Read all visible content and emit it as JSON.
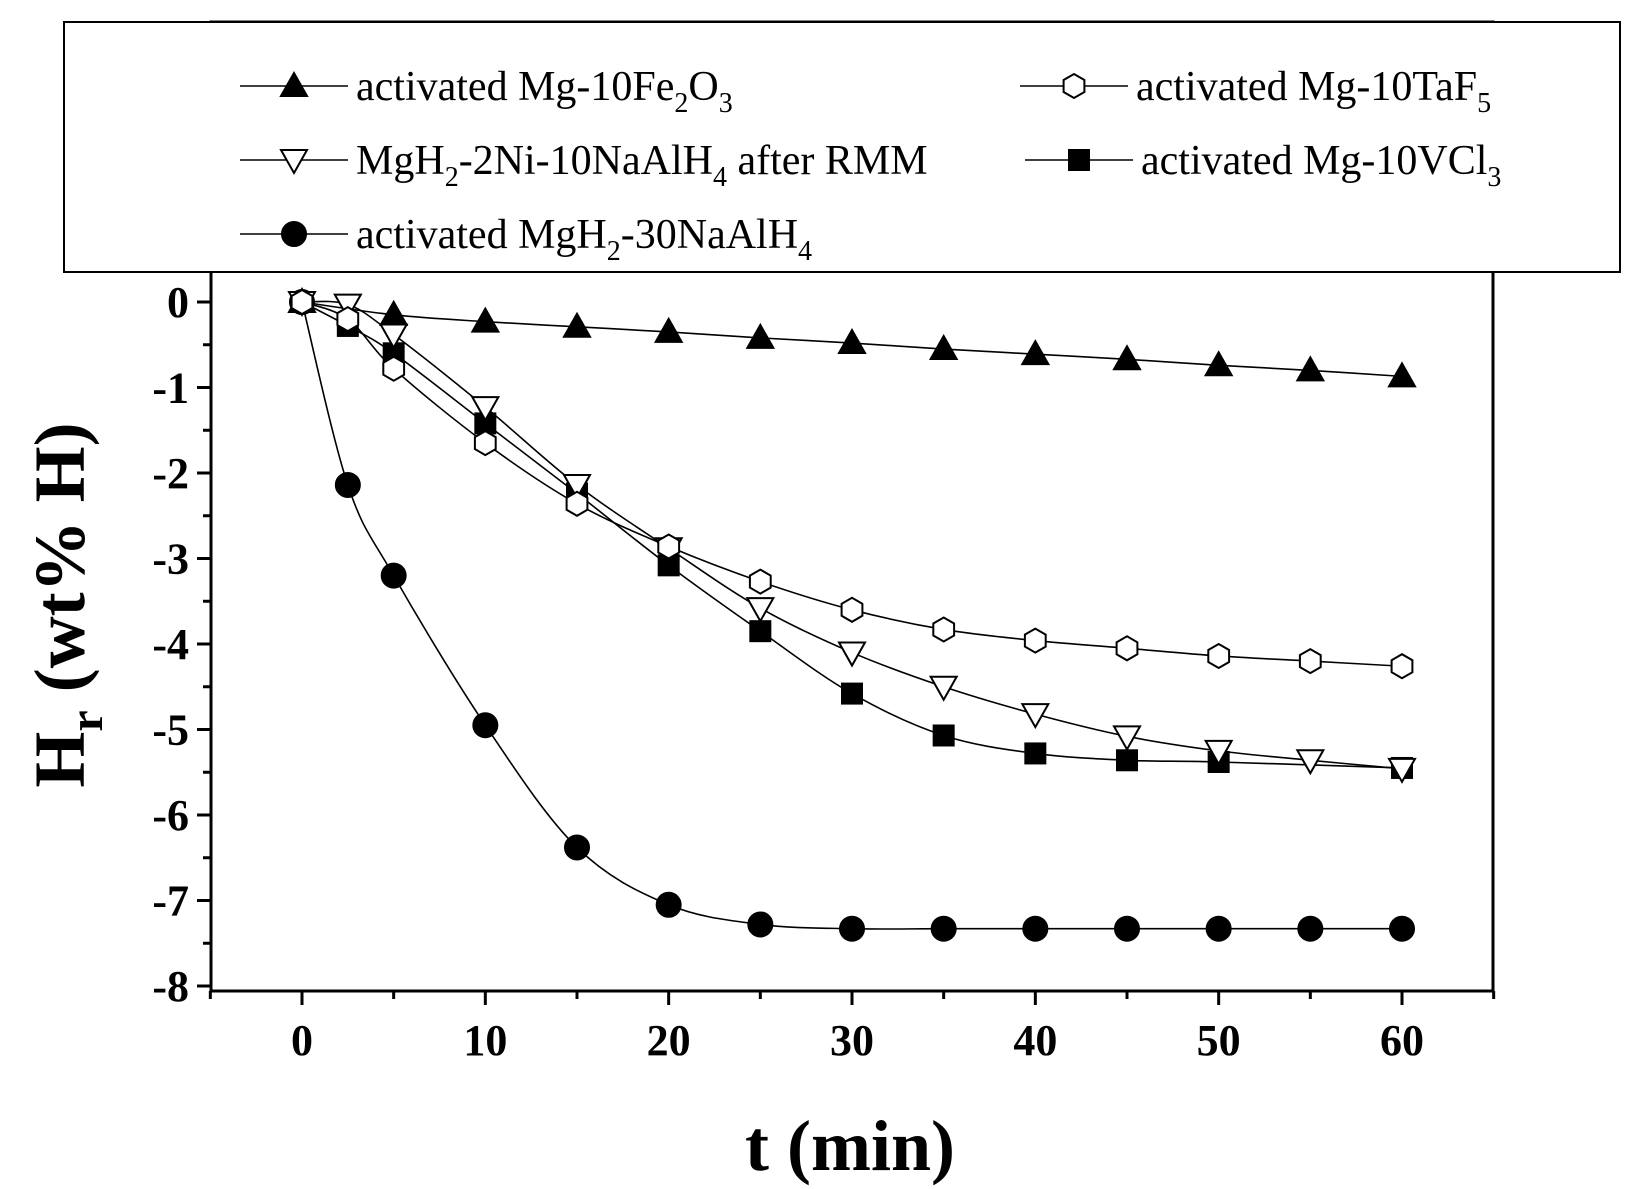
{
  "chart_data": {
    "type": "line",
    "title": "",
    "xlabel": "t (min)",
    "ylabel_main": "H",
    "ylabel_sub": "r",
    "ylabel_rest": " (wt% H)",
    "xlim": [
      -5,
      65
    ],
    "ylim": [
      -8,
      0
    ],
    "x_ticks": [
      0,
      10,
      20,
      30,
      40,
      50,
      60
    ],
    "x_tick_labels": [
      "0",
      "10",
      "20",
      "30",
      "40",
      "50",
      "60"
    ],
    "y_ticks": [
      0,
      -1,
      -2,
      -3,
      -4,
      -5,
      -6,
      -7,
      -8
    ],
    "y_tick_labels": [
      "0",
      "-1",
      "-2",
      "-3",
      "-4",
      "-5",
      "-6",
      "-7",
      "-8"
    ],
    "series": [
      {
        "name": "activated Mg-10Fe2O3",
        "legend_parts": [
          [
            "activated Mg-10Fe",
            ""
          ],
          [
            "2",
            "sub"
          ],
          [
            "O",
            ""
          ],
          [
            "3",
            "sub"
          ]
        ],
        "marker": "triangle-up-filled",
        "x": [
          0,
          5,
          10,
          15,
          20,
          25,
          30,
          35,
          40,
          45,
          50,
          55,
          60
        ],
        "values": [
          0,
          -0.15,
          -0.23,
          -0.29,
          -0.35,
          -0.42,
          -0.48,
          -0.55,
          -0.61,
          -0.67,
          -0.74,
          -0.8,
          -0.87
        ]
      },
      {
        "name": "activated Mg-10TaF5",
        "legend_parts": [
          [
            "activated Mg-10TaF",
            ""
          ],
          [
            "5",
            "sub"
          ]
        ],
        "marker": "hexagon-open",
        "x": [
          0,
          2.5,
          5,
          10,
          15,
          20,
          25,
          30,
          35,
          40,
          45,
          50,
          55,
          60
        ],
        "values": [
          0,
          -0.2,
          -0.78,
          -1.65,
          -2.36,
          -2.86,
          -3.27,
          -3.6,
          -3.83,
          -3.96,
          -4.05,
          -4.14,
          -4.2,
          -4.26
        ]
      },
      {
        "name": "MgH2-2Ni-10NaAlH4 after RMM",
        "legend_parts": [
          [
            "MgH",
            ""
          ],
          [
            "2",
            "sub"
          ],
          [
            "-2Ni-10NaAlH",
            ""
          ],
          [
            "4",
            "sub"
          ],
          [
            " after RMM",
            ""
          ]
        ],
        "marker": "triangle-down-open",
        "x": [
          0,
          2.5,
          5,
          10,
          15,
          20,
          25,
          30,
          35,
          40,
          45,
          50,
          55,
          60
        ],
        "values": [
          0,
          -0.03,
          -0.38,
          -1.23,
          -2.14,
          -2.88,
          -3.58,
          -4.1,
          -4.5,
          -4.82,
          -5.08,
          -5.25,
          -5.36,
          -5.46
        ]
      },
      {
        "name": "activated Mg-10VCl3",
        "legend_parts": [
          [
            "activated Mg-10VCl",
            ""
          ],
          [
            "3",
            "sub"
          ]
        ],
        "marker": "square-filled",
        "x": [
          0,
          2.5,
          5,
          10,
          15,
          20,
          25,
          30,
          35,
          40,
          45,
          50,
          60
        ],
        "values": [
          0,
          -0.28,
          -0.6,
          -1.42,
          -2.24,
          -3.08,
          -3.85,
          -4.58,
          -5.07,
          -5.28,
          -5.36,
          -5.38,
          -5.45
        ]
      },
      {
        "name": "activated MgH2-30NaAlH4",
        "legend_parts": [
          [
            "activated MgH",
            ""
          ],
          [
            "2",
            "sub"
          ],
          [
            "-30NaAlH",
            ""
          ],
          [
            "4",
            "sub"
          ]
        ],
        "marker": "circle-filled",
        "x": [
          0,
          2.5,
          5,
          10,
          15,
          20,
          25,
          30,
          35,
          40,
          45,
          50,
          55,
          60
        ],
        "values": [
          0,
          -2.14,
          -3.2,
          -4.95,
          -6.38,
          -7.05,
          -7.28,
          -7.33,
          -7.33,
          -7.33,
          -7.33,
          -7.33,
          -7.33,
          -7.33
        ]
      }
    ],
    "legend_location": "top"
  }
}
